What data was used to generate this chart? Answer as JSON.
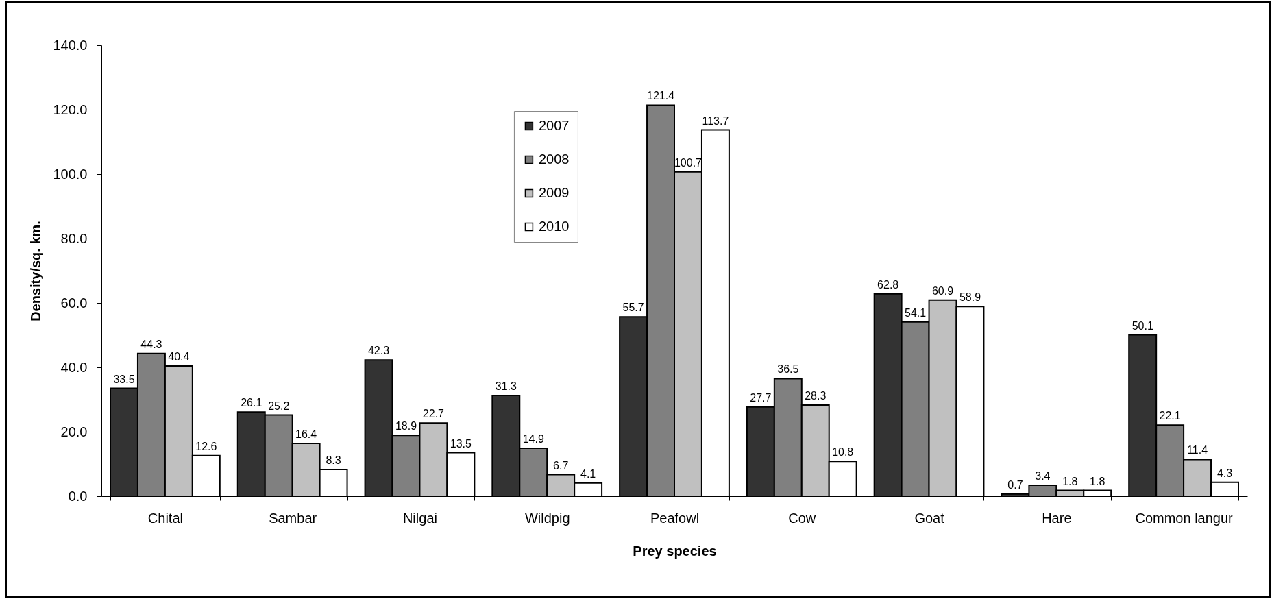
{
  "chart_data": {
    "type": "bar",
    "xlabel": "Prey species",
    "ylabel": "Density/sq. km.",
    "categories": [
      "Chital",
      "Sambar",
      "Nilgai",
      "Wildpig",
      "Peafowl",
      "Cow",
      "Goat",
      "Hare",
      "Common langur"
    ],
    "series": [
      {
        "name": "2007",
        "color": "#333333",
        "values": [
          33.5,
          26.1,
          42.3,
          31.3,
          55.7,
          27.7,
          62.8,
          0.7,
          50.1
        ]
      },
      {
        "name": "2008",
        "color": "#808080",
        "values": [
          44.3,
          25.2,
          18.9,
          14.9,
          121.4,
          36.5,
          54.1,
          3.4,
          22.1
        ]
      },
      {
        "name": "2009",
        "color": "#c0c0c0",
        "values": [
          40.4,
          16.4,
          22.7,
          6.7,
          100.7,
          28.3,
          60.9,
          1.8,
          11.4
        ]
      },
      {
        "name": "2010",
        "color": "#ffffff",
        "values": [
          12.6,
          8.3,
          13.5,
          4.1,
          113.7,
          10.8,
          58.9,
          1.8,
          4.3
        ]
      }
    ],
    "ylim": [
      0,
      140
    ],
    "yticks": [
      {
        "value": 0,
        "label": "0.0"
      },
      {
        "value": 20,
        "label": "20.0"
      },
      {
        "value": 40,
        "label": "40.0"
      },
      {
        "value": 60,
        "label": "60.0"
      },
      {
        "value": 80,
        "label": "80.0"
      },
      {
        "value": 100,
        "label": "100.0"
      },
      {
        "value": 120,
        "label": "120.0"
      },
      {
        "value": 140,
        "label": "140.0"
      }
    ],
    "legend": "top",
    "data_labels": true
  }
}
